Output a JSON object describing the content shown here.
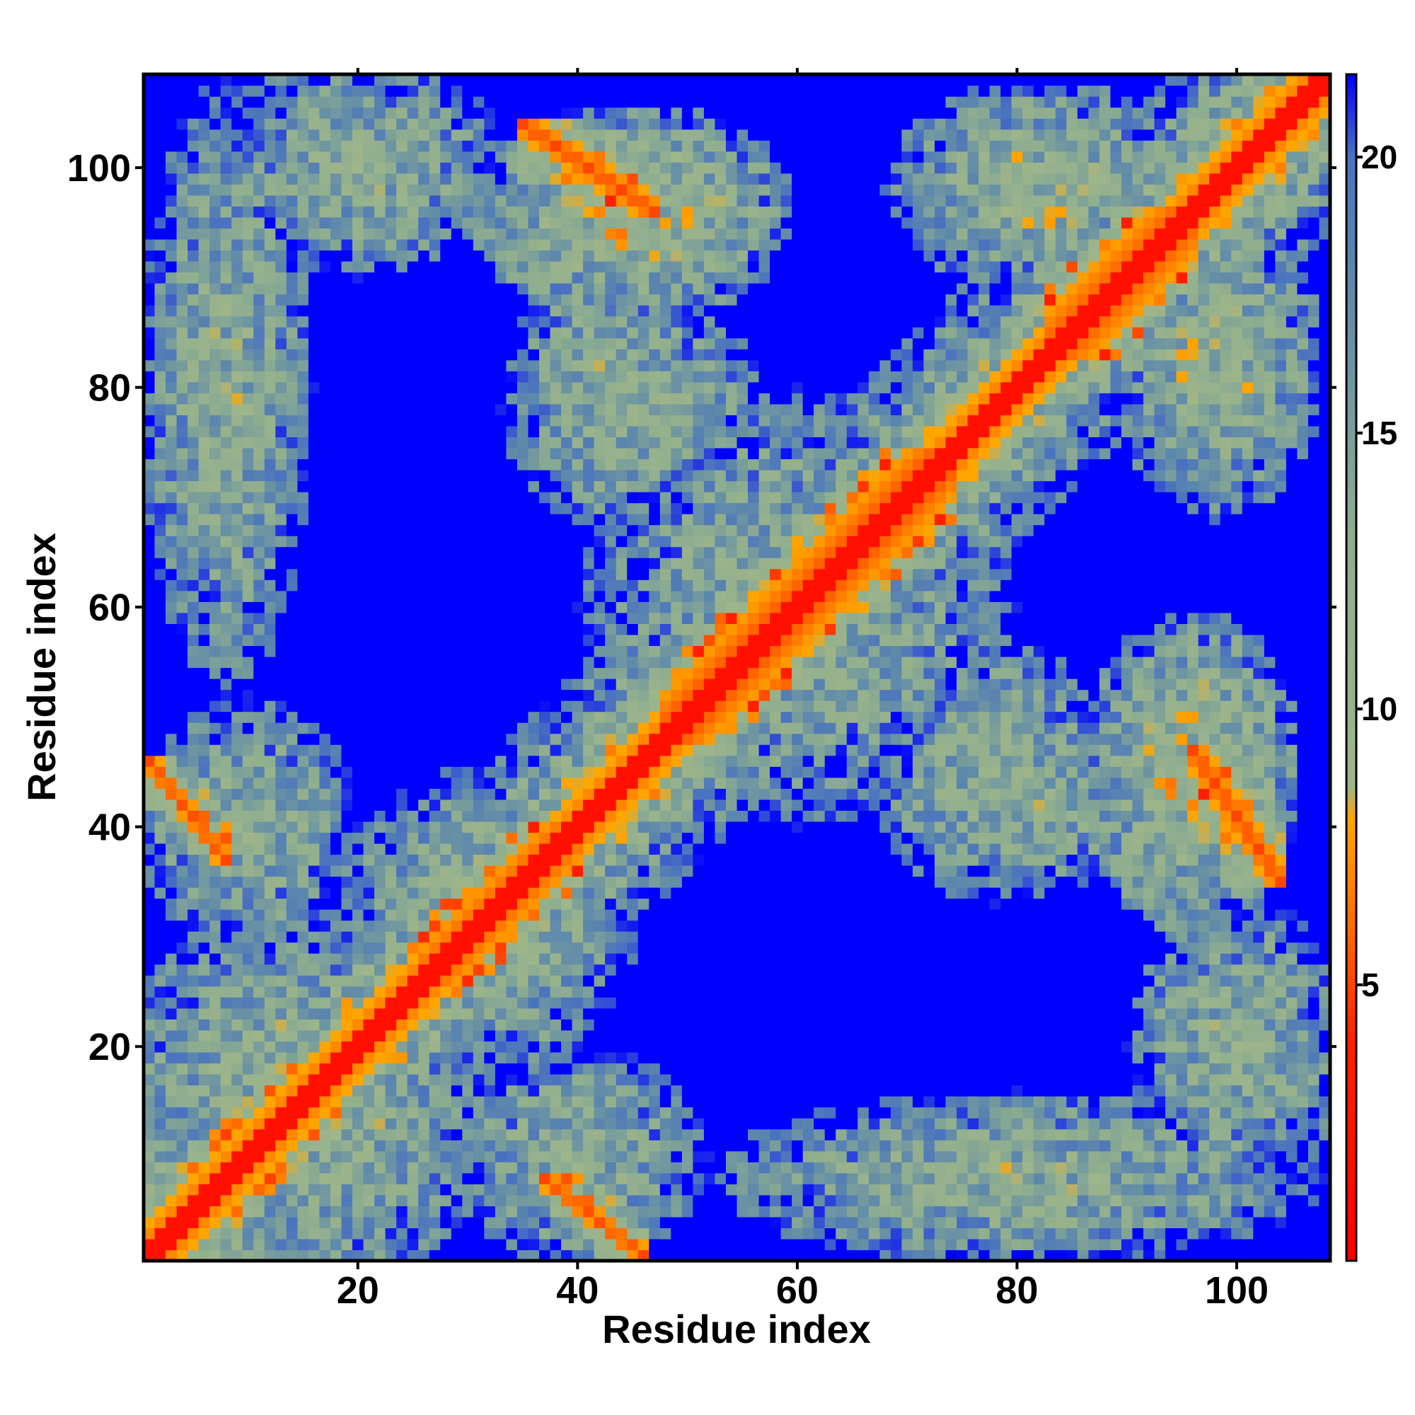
{
  "chart_data": {
    "type": "heatmap",
    "title": "",
    "xlabel": "Residue index",
    "ylabel": "Residue index",
    "x_range": [
      1,
      108
    ],
    "y_range": [
      1,
      108
    ],
    "n_residues": 108,
    "x_ticks": [
      20,
      40,
      60,
      80,
      100
    ],
    "y_ticks": [
      20,
      40,
      60,
      80,
      100
    ],
    "x_tick_labels": [
      "20",
      "40",
      "60",
      "80",
      "100"
    ],
    "y_tick_labels": [
      "20",
      "40",
      "60",
      "80",
      "100"
    ],
    "colorbar": {
      "ticks": [
        5,
        10,
        15,
        20
      ],
      "tick_labels": [
        "5",
        "10",
        "15",
        "20"
      ],
      "range": [
        0,
        21.5
      ],
      "scale": [
        {
          "value": 0,
          "color": "#ff0000"
        },
        {
          "value": 4,
          "color": "#ff2000"
        },
        {
          "value": 6,
          "color": "#ff6a00"
        },
        {
          "value": 8,
          "color": "#ffa500"
        },
        {
          "value": 8.6,
          "color": "#9fb58a"
        },
        {
          "value": 13,
          "color": "#8fae8f"
        },
        {
          "value": 18,
          "color": "#5b86ad"
        },
        {
          "value": 20,
          "color": "#4a72c0"
        },
        {
          "value": 21.5,
          "color": "#0000ff"
        }
      ],
      "background_color": "#0000ff"
    },
    "contact_regions": [
      {
        "name": "main diagonal",
        "x": [
          1,
          108
        ],
        "y": [
          1,
          108
        ]
      },
      {
        "name": "strand pair near residues 97-104",
        "x": [
          35,
          47
        ],
        "y": [
          96,
          104
        ]
      },
      {
        "name": "strand pair near residues 35-47",
        "x": [
          96,
          104
        ],
        "y": [
          35,
          47
        ]
      },
      {
        "name": "contact near residues 2-8 / 38-46",
        "x": [
          1,
          8
        ],
        "y": [
          37,
          46
        ]
      },
      {
        "name": "contact near residues 38-46 / 2-8",
        "x": [
          37,
          46
        ],
        "y": [
          1,
          8
        ]
      },
      {
        "name": "helix region around residues 85-95",
        "x": [
          84,
          95
        ],
        "y": [
          84,
          95
        ]
      },
      {
        "name": "helix region around residues 50-72",
        "x": [
          50,
          72
        ],
        "y": [
          50,
          72
        ]
      }
    ]
  }
}
